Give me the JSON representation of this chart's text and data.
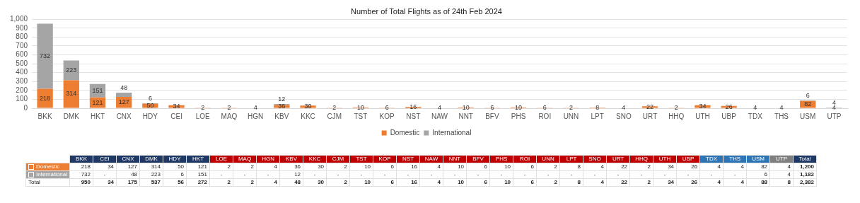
{
  "chart_data": [
    {
      "type": "bar",
      "title": "Number of Total Flights as of 24th Feb 2024",
      "stacked": true,
      "categories": [
        "BKK",
        "DMK",
        "HKT",
        "CNX",
        "HDY",
        "CEI",
        "LOE",
        "MAQ",
        "HGN",
        "KBV",
        "KKC",
        "CJM",
        "TST",
        "KOP",
        "NST",
        "NAW",
        "NNT",
        "BFV",
        "PHS",
        "ROI",
        "UNN",
        "LPT",
        "SNO",
        "URT",
        "HHQ",
        "UTH",
        "UBP",
        "TDX",
        "THS",
        "USM",
        "UTP"
      ],
      "series": [
        {
          "name": "Domestic",
          "color": "#ed7d31",
          "values": [
            218,
            314,
            121,
            127,
            50,
            34,
            2,
            2,
            4,
            36,
            30,
            2,
            10,
            6,
            16,
            4,
            10,
            6,
            10,
            6,
            2,
            8,
            4,
            22,
            2,
            34,
            26,
            4,
            4,
            82,
            4
          ]
        },
        {
          "name": "International",
          "color": "#a5a5a5",
          "values": [
            732,
            223,
            151,
            48,
            6,
            null,
            null,
            null,
            null,
            12,
            null,
            null,
            null,
            null,
            null,
            null,
            null,
            null,
            null,
            null,
            null,
            null,
            null,
            null,
            null,
            null,
            null,
            null,
            null,
            6,
            4
          ]
        }
      ],
      "ylim": [
        0,
        1000
      ],
      "yticks": [
        0,
        100,
        200,
        300,
        400,
        500,
        600,
        700,
        800,
        900,
        {
          "value": 1000,
          "label": "1,000"
        }
      ],
      "grid": "y",
      "legend": "bottom",
      "data_labels": true
    },
    {
      "type": "other",
      "data_labels": true,
      "categories": [
        "BKK",
        "CEI",
        "CNX",
        "DMK",
        "HDY",
        "HKT",
        "LOE",
        "MAQ",
        "HGN",
        "KBV",
        "KKC",
        "CJM",
        "TST",
        "KOP",
        "NST",
        "NAW",
        "NNT",
        "BFV",
        "PHS",
        "ROI",
        "UNN",
        "LPT",
        "SNO",
        "URT",
        "HHQ",
        "UTH",
        "UBP",
        "TDX",
        "THS",
        "USM",
        "UTP",
        "Total"
      ],
      "colors": [
        "#1f3864",
        "#1f3864",
        "#1f3864",
        "#1f3864",
        "#1f3864",
        "#1f3864",
        "#c00000",
        "#c00000",
        "#c00000",
        "#c00000",
        "#c00000",
        "#c00000",
        "#c00000",
        "#c00000",
        "#c00000",
        "#c00000",
        "#c00000",
        "#c00000",
        "#c00000",
        "#c00000",
        "#c00000",
        "#c00000",
        "#c00000",
        "#c00000",
        "#c00000",
        "#c00000",
        "#c00000",
        "#2e75b6",
        "#2e75b6",
        "#2e75b6",
        "#7f7f7f",
        "#1f3864"
      ],
      "series": [
        {
          "name": "Domestic",
          "color": "#ed7d31",
          "value_labels": [
            "218",
            "34",
            "127",
            "314",
            "50",
            "121",
            "2",
            "2",
            "4",
            "36",
            "30",
            "2",
            "10",
            "6",
            "16",
            "4",
            "10",
            "6",
            "10",
            "6",
            "2",
            "8",
            "4",
            "22",
            "2",
            "34",
            "26",
            "4",
            "4",
            "82",
            "4",
            "1,200"
          ],
          "values": [
            218,
            34,
            127,
            314,
            50,
            121,
            2,
            2,
            4,
            36,
            30,
            2,
            10,
            6,
            16,
            4,
            10,
            6,
            10,
            6,
            2,
            8,
            4,
            22,
            2,
            34,
            26,
            4,
            4,
            82,
            4,
            1200
          ]
        },
        {
          "name": "International",
          "color": "#a5a5a5",
          "value_labels": [
            "732",
            "-",
            "48",
            "223",
            "6",
            "151",
            "-",
            "-",
            "-",
            "12",
            "-",
            "-",
            "-",
            "-",
            "-",
            "-",
            "-",
            "-",
            "-",
            "-",
            "-",
            "-",
            "-",
            "-",
            "-",
            "-",
            "-",
            "-",
            "-",
            "6",
            "4",
            "1,182"
          ],
          "values": [
            732,
            null,
            48,
            223,
            6,
            151,
            null,
            null,
            null,
            12,
            null,
            null,
            null,
            null,
            null,
            null,
            null,
            null,
            null,
            null,
            null,
            null,
            null,
            null,
            null,
            null,
            null,
            null,
            null,
            6,
            4,
            1182
          ]
        },
        {
          "name": "Total",
          "value_labels": [
            "950",
            "34",
            "175",
            "537",
            "56",
            "272",
            "2",
            "2",
            "4",
            "48",
            "30",
            "2",
            "10",
            "6",
            "16",
            "4",
            "10",
            "6",
            "10",
            "6",
            "2",
            "8",
            "4",
            "22",
            "2",
            "34",
            "26",
            "4",
            "4",
            "88",
            "8",
            "2,382"
          ],
          "values": [
            950,
            34,
            175,
            537,
            56,
            272,
            2,
            2,
            4,
            48,
            30,
            2,
            10,
            6,
            16,
            4,
            10,
            6,
            10,
            6,
            2,
            8,
            4,
            22,
            2,
            34,
            26,
            4,
            4,
            88,
            8,
            2382
          ]
        }
      ]
    }
  ]
}
